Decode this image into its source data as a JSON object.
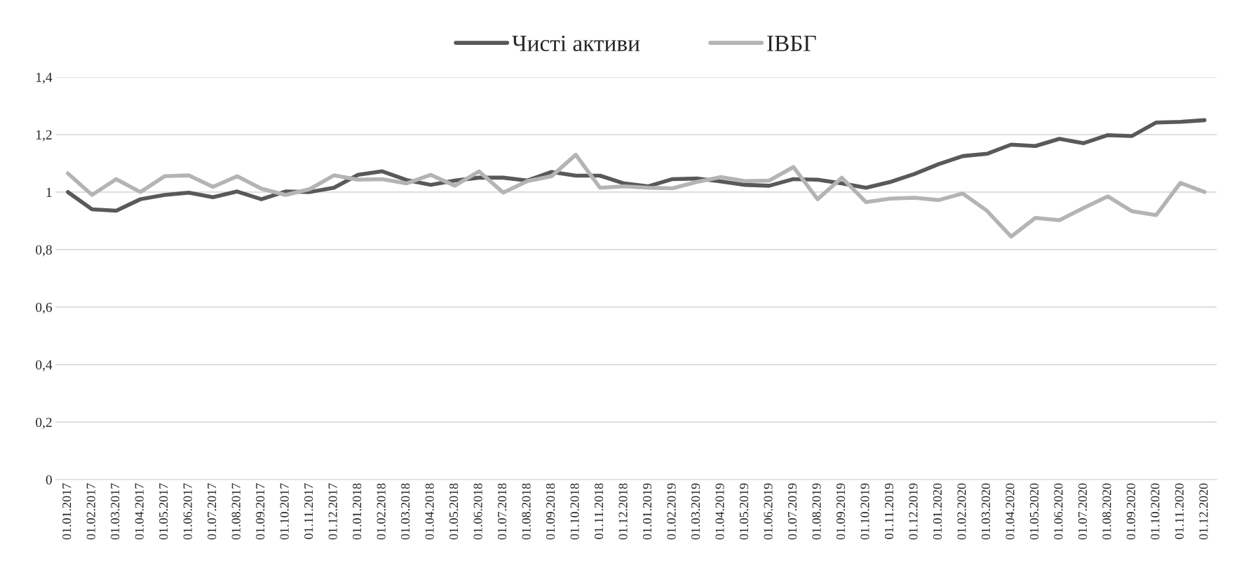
{
  "chart_data": {
    "type": "line",
    "categories": [
      "01.01.2017",
      "01.02.2017",
      "01.03.2017",
      "01.04.2017",
      "01.05.2017",
      "01.06.2017",
      "01.07.2017",
      "01.08.2017",
      "01.09.2017",
      "01.10.2017",
      "01.11.2017",
      "01.12.2017",
      "01.01.2018",
      "01.02.2018",
      "01.03.2018",
      "01.04.2018",
      "01.05.2018",
      "01.06.2018",
      "01.07.2018",
      "01.08.2018",
      "01.09.2018",
      "01.10.2018",
      "01.11.2018",
      "01.12.2018",
      "01.01.2019",
      "01.02.2019",
      "01.03.2019",
      "01.04.2019",
      "01.05.2019",
      "01.06.2019",
      "01.07.2019",
      "01.08.2019",
      "01.09.2019",
      "01.10.2019",
      "01.11.2019",
      "01.12.2019",
      "01.01.2020",
      "01.02.2020",
      "01.03.2020",
      "01.04.2020",
      "01.05.2020",
      "01.06.2020",
      "01.07.2020",
      "01.08.2020",
      "01.09.2020",
      "01.10.2020",
      "01.11.2020",
      "01.12.2020"
    ],
    "series": [
      {
        "name": "Чисті активи",
        "color": "#595959",
        "values": [
          1.0,
          0.94,
          0.935,
          0.975,
          0.99,
          0.998,
          0.982,
          1.002,
          0.975,
          1.002,
          1.0,
          1.015,
          1.06,
          1.072,
          1.042,
          1.025,
          1.04,
          1.05,
          1.05,
          1.04,
          1.07,
          1.057,
          1.057,
          1.03,
          1.02,
          1.045,
          1.047,
          1.037,
          1.025,
          1.022,
          1.045,
          1.043,
          1.03,
          1.015,
          1.035,
          1.063,
          1.097,
          1.125,
          1.133,
          1.165,
          1.16,
          1.185,
          1.17,
          1.198,
          1.195,
          1.242,
          1.244,
          1.25
        ]
      },
      {
        "name": "ІВБГ",
        "color": "#b4b4b4",
        "values": [
          1.065,
          0.99,
          1.045,
          1.0,
          1.055,
          1.058,
          1.018,
          1.055,
          1.012,
          0.99,
          1.01,
          1.058,
          1.043,
          1.045,
          1.03,
          1.06,
          1.022,
          1.072,
          0.998,
          1.038,
          1.055,
          1.13,
          1.015,
          1.02,
          1.015,
          1.013,
          1.035,
          1.052,
          1.038,
          1.04,
          1.087,
          0.975,
          1.05,
          0.965,
          0.977,
          0.98,
          0.972,
          0.995,
          0.935,
          0.845,
          0.91,
          0.902,
          0.945,
          0.985,
          0.933,
          0.92,
          1.032,
          1.0
        ]
      }
    ],
    "ylim": [
      0,
      1.4
    ],
    "yticks": [
      0,
      {
        "value": 0.2,
        "label": "0,2"
      },
      {
        "value": 0.4,
        "label": "0,4"
      },
      {
        "value": 0.6,
        "label": "0,6"
      },
      {
        "value": 0.8,
        "label": "0,8"
      },
      1,
      {
        "value": 1.2,
        "label": "1,2"
      },
      {
        "value": 1.4,
        "label": "1,4"
      }
    ],
    "grid": "y",
    "legend": "top",
    "marker": "none",
    "line_style": "solid"
  }
}
